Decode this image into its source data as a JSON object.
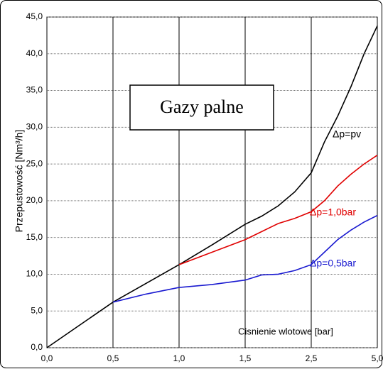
{
  "chart_data": {
    "type": "line",
    "title": "Gazy palne",
    "x_label": "Cisnienie wlotowe [bar]",
    "y_label": "Przepustowość [Nm³/h]",
    "xlim": [
      0,
      5
    ],
    "xticks": [
      {
        "value": 0,
        "label": "0,0"
      },
      {
        "value": 0.5,
        "label": "0,5"
      },
      {
        "value": 1,
        "label": "1,0"
      },
      {
        "value": 1.5,
        "label": "1,5"
      },
      {
        "value": 2.5,
        "label": "2,5"
      },
      {
        "value": 5,
        "label": "5,0"
      }
    ],
    "ylim": [
      0,
      45
    ],
    "yticks": [
      {
        "value": 0,
        "label": "0,0"
      },
      {
        "value": 5,
        "label": "5,0"
      },
      {
        "value": 10,
        "label": "10,0"
      },
      {
        "value": 15,
        "label": "15,0"
      },
      {
        "value": 20,
        "label": "20,0"
      },
      {
        "value": 25,
        "label": "25,0"
      },
      {
        "value": 30,
        "label": "30,0"
      },
      {
        "value": 35,
        "label": "35,0"
      },
      {
        "value": 40,
        "label": "40,0"
      },
      {
        "value": 45,
        "label": "45,0"
      }
    ],
    "grid": true,
    "series": [
      {
        "name": "Δp=pv",
        "color": "#000000",
        "x": [
          0,
          0.5,
          1,
          1.25,
          1.5,
          1.75,
          2,
          2.25,
          2.5,
          3,
          3.5,
          4,
          4.5,
          5
        ],
        "values": [
          0,
          6.2,
          11.3,
          14.0,
          16.8,
          17.9,
          19.3,
          21.2,
          23.8,
          28.0,
          31.5,
          35.5,
          40.0,
          43.8
        ]
      },
      {
        "name": "Δp=1,0bar",
        "color": "#e00000",
        "x": [
          1,
          1.25,
          1.5,
          1.75,
          2,
          2.25,
          2.5,
          3,
          3.5,
          4,
          4.5,
          5
        ],
        "values": [
          11.3,
          13.0,
          14.7,
          15.8,
          16.9,
          17.6,
          18.5,
          20.0,
          22.0,
          23.6,
          25.0,
          26.2
        ]
      },
      {
        "name": "Δp=0,5bar",
        "color": "#1a1ad0",
        "x": [
          0.5,
          0.75,
          1,
          1.25,
          1.5,
          1.75,
          2,
          2.25,
          2.5,
          3,
          3.5,
          4,
          4.5,
          5
        ],
        "values": [
          6.2,
          7.3,
          8.2,
          8.6,
          9.2,
          9.9,
          10.0,
          10.5,
          11.3,
          13.0,
          14.7,
          16.0,
          17.1,
          18.0
        ]
      }
    ]
  }
}
